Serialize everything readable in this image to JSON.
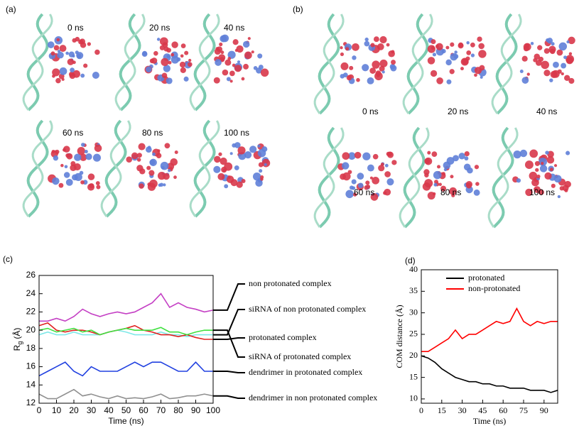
{
  "panels": [
    {
      "label": "(a)",
      "times": [
        "0 ns",
        "20 ns",
        "40 ns",
        "60 ns",
        "80 ns",
        "100 ns"
      ]
    },
    {
      "label": "(b)",
      "times": [
        "0 ns",
        "20 ns",
        "40 ns",
        "60 ns",
        "80 ns",
        "100 ns"
      ]
    }
  ],
  "chart_data": [
    {
      "type": "line",
      "label": "(c)",
      "xlabel": "Time (ns)",
      "ylabel": "R",
      "ylabel_subscript": "g",
      "ylabel_unit": "(Å)",
      "x": [
        0,
        5,
        10,
        15,
        20,
        25,
        30,
        35,
        40,
        45,
        50,
        55,
        60,
        65,
        70,
        75,
        80,
        85,
        90,
        95,
        100
      ],
      "xlim": [
        0,
        100
      ],
      "xticks": [
        0,
        10,
        20,
        30,
        40,
        50,
        60,
        70,
        80,
        90,
        100
      ],
      "ylim": [
        12,
        26
      ],
      "yticks": [
        12,
        14,
        16,
        18,
        20,
        22,
        24,
        26
      ],
      "series": [
        {
          "name": "non protonated complex",
          "color": "#c43fc4",
          "values": [
            21,
            21,
            21.3,
            21,
            21.5,
            22.3,
            21.8,
            21.5,
            21.8,
            22,
            21.8,
            22,
            22.5,
            23,
            24,
            22.5,
            23,
            22.5,
            22.3,
            22,
            22.2
          ]
        },
        {
          "name": "siRNA of non protonated complex",
          "color": "#7fe8e8",
          "values": [
            19.5,
            19.8,
            19.5,
            19.5,
            19.8,
            19.5,
            19.5,
            19.5,
            19.8,
            20,
            19.8,
            19.5,
            19.5,
            19.5,
            19.8,
            19.5,
            19.5,
            19.3,
            19.5,
            19.5,
            19.5
          ]
        },
        {
          "name": "protonated complex",
          "color": "#e02020",
          "values": [
            20.5,
            20.8,
            20,
            19.8,
            20,
            20,
            19.8,
            19.5,
            19.8,
            20,
            20.2,
            20.5,
            20,
            19.8,
            19.5,
            19.5,
            19.3,
            19.5,
            19.2,
            19,
            19
          ]
        },
        {
          "name": "siRNA of protonated complex",
          "color": "#40e040",
          "values": [
            20,
            20.2,
            19.8,
            20,
            20.2,
            19.8,
            20,
            19.5,
            19.8,
            20,
            20.2,
            20,
            20,
            20,
            20.3,
            19.8,
            19.8,
            19.5,
            19.8,
            20,
            20
          ]
        },
        {
          "name": "dendrimer in protonated complex",
          "color": "#2040e0",
          "values": [
            15,
            15.5,
            16,
            16.5,
            15.5,
            15,
            16,
            15.5,
            15.5,
            15.5,
            16,
            16.5,
            16,
            16.5,
            16.5,
            16,
            15.5,
            15.5,
            16.5,
            15.5,
            15.5
          ]
        },
        {
          "name": "dendrimer in non protonated complex",
          "color": "#909090",
          "values": [
            13,
            12.5,
            12.5,
            13,
            13.5,
            12.8,
            13,
            12.7,
            12.5,
            12.8,
            12.5,
            12.6,
            12.5,
            12.7,
            13,
            12.5,
            12.6,
            12.8,
            12.8,
            13,
            12.8
          ]
        }
      ]
    },
    {
      "type": "line",
      "label": "(d)",
      "xlabel": "Time (ns)",
      "ylabel": "COM distance (Å)",
      "x": [
        0,
        5,
        10,
        15,
        20,
        25,
        30,
        35,
        40,
        45,
        50,
        55,
        60,
        65,
        70,
        75,
        80,
        85,
        90,
        95,
        100
      ],
      "xlim": [
        0,
        100
      ],
      "xticks": [
        0,
        15,
        30,
        45,
        60,
        75,
        90
      ],
      "ylim": [
        9,
        40
      ],
      "yticks": [
        10,
        15,
        20,
        25,
        30,
        35,
        40
      ],
      "legend": "top",
      "series": [
        {
          "name": "protonated",
          "color": "#000000",
          "values": [
            20,
            19.5,
            18.5,
            17,
            16,
            15,
            14.5,
            14,
            14,
            13.5,
            13.5,
            13,
            13,
            12.5,
            12.5,
            12.5,
            12,
            12,
            12,
            11.5,
            12
          ]
        },
        {
          "name": "non-protonated",
          "color": "#ff0000",
          "values": [
            21,
            21,
            22,
            23,
            24,
            26,
            24,
            25,
            25,
            26,
            27,
            28,
            27.5,
            28,
            31,
            28,
            27,
            28,
            27.5,
            28,
            28
          ]
        }
      ]
    }
  ]
}
